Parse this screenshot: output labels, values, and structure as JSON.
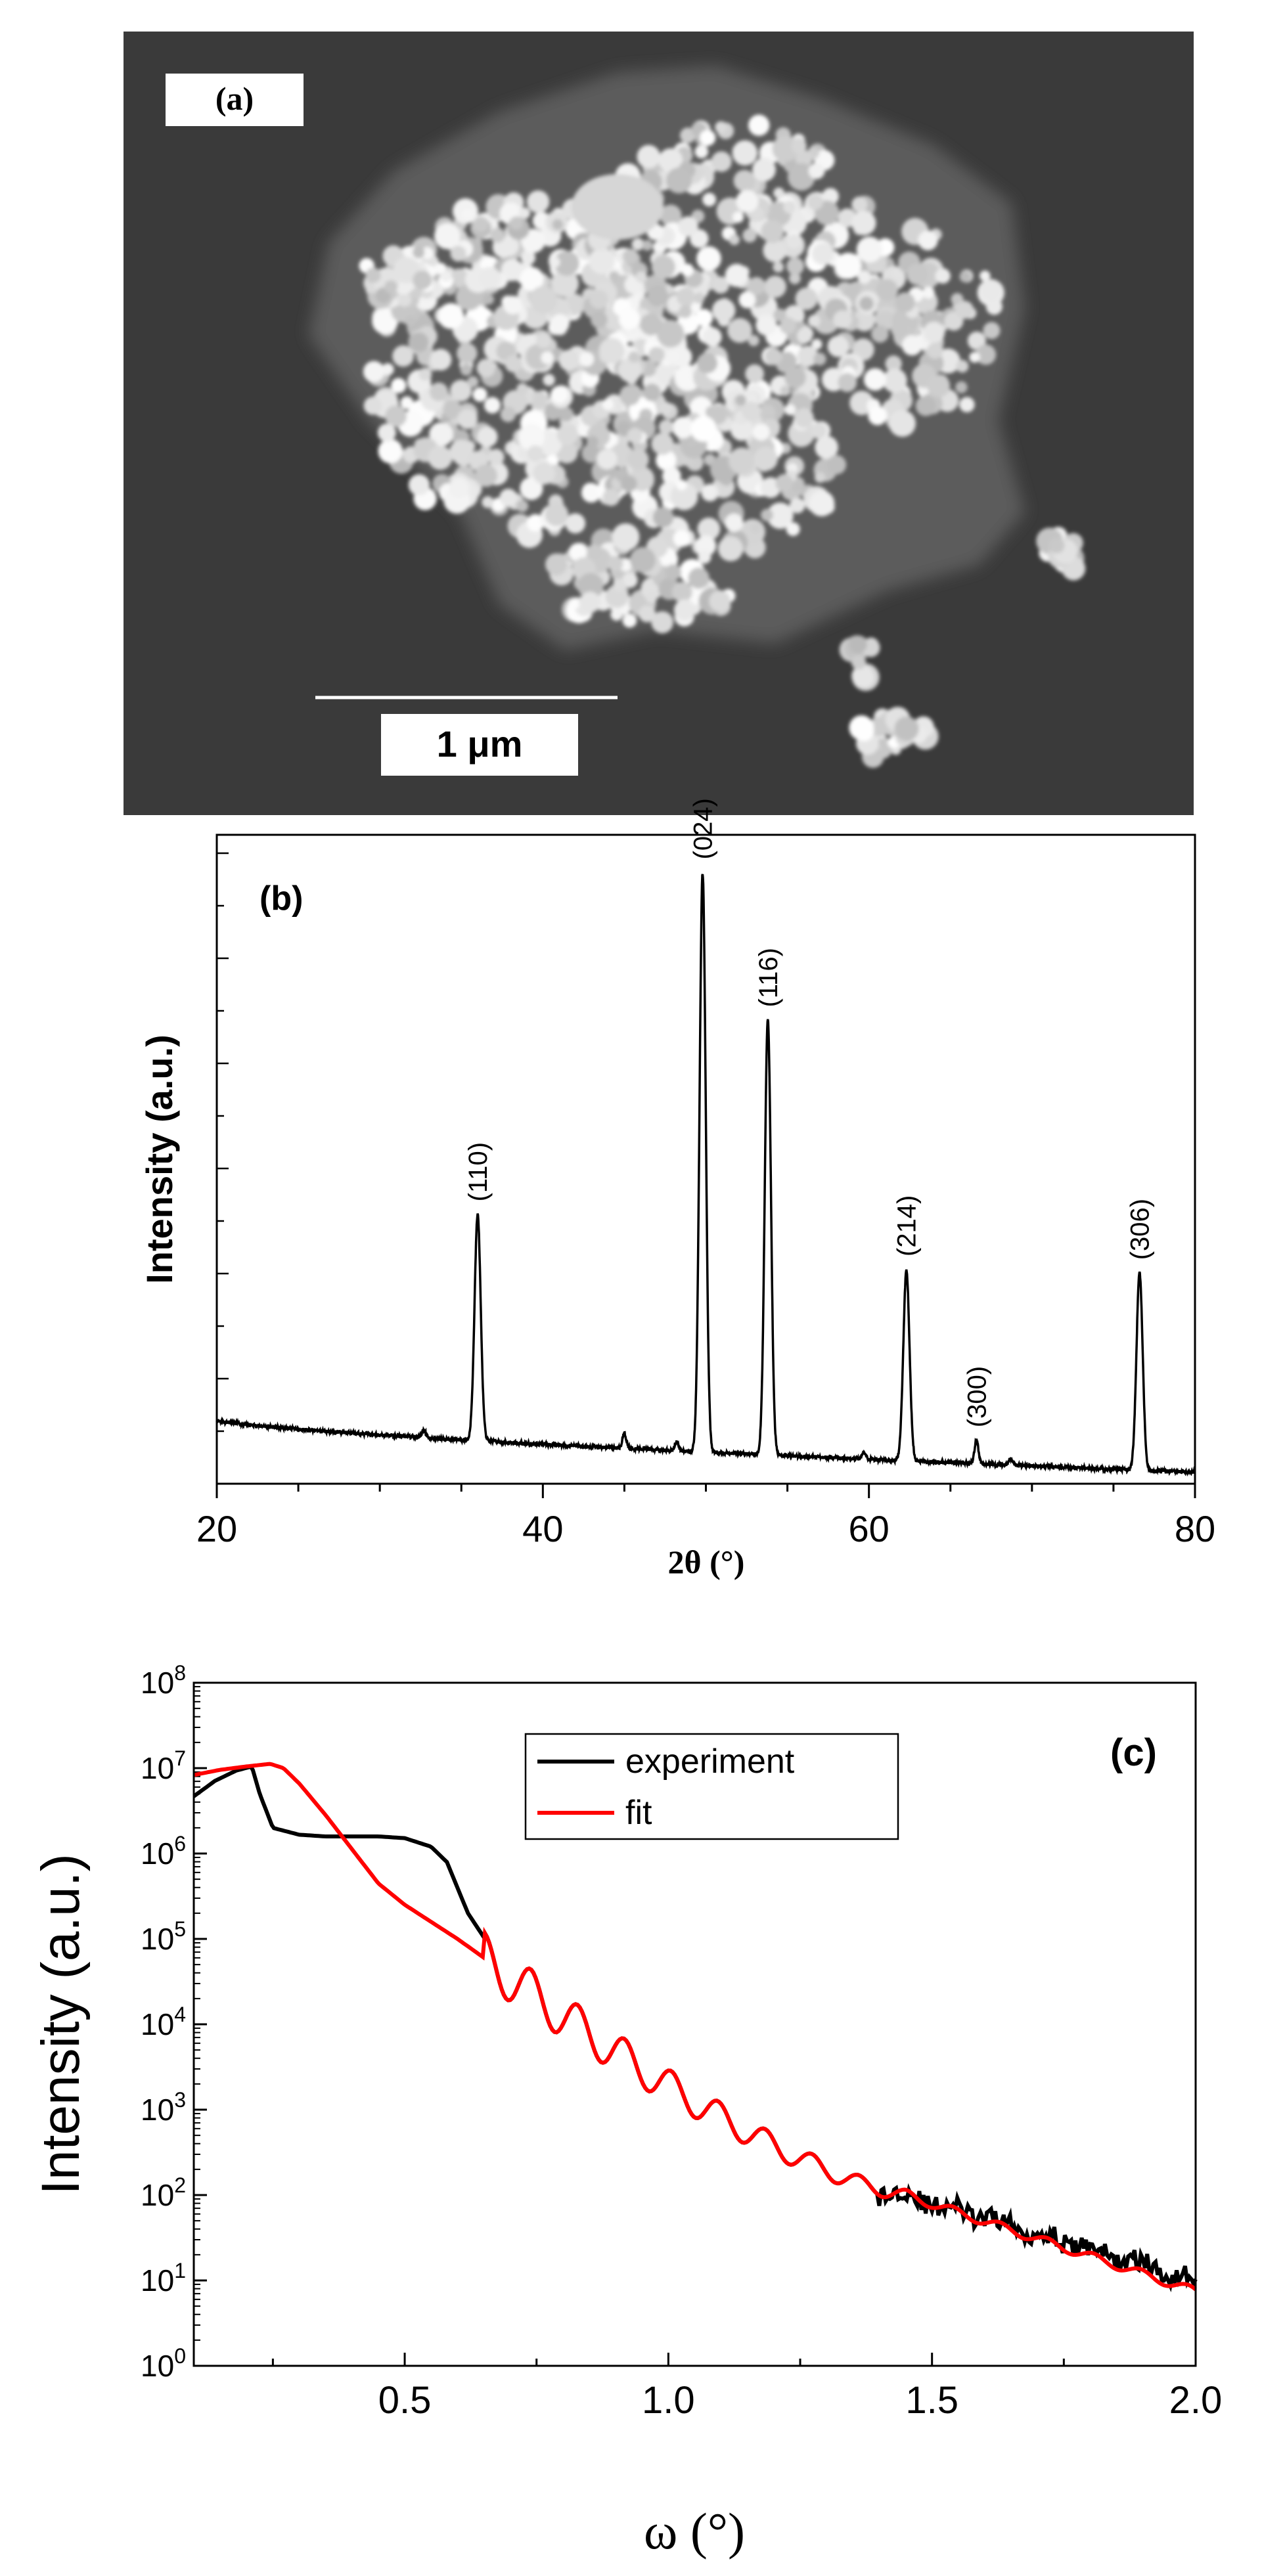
{
  "panel_a": {
    "label": "(a)",
    "scale_bar_text": "1 μm"
  },
  "chart_data": [
    {
      "id": "b",
      "type": "line",
      "panel_label": "(b)",
      "xlabel": "2θ (°)",
      "ylabel": "Intensity (a.u.)",
      "xlim": [
        20,
        80
      ],
      "ylim": [
        0,
        1.12
      ],
      "xticks": [
        20,
        40,
        60,
        80
      ],
      "y_tick_labels_shown": false,
      "baseline": {
        "start": 0.11,
        "end": 0.02
      },
      "peaks": [
        {
          "label": "(110)",
          "x": 36.0,
          "height": 0.39
        },
        {
          "label": "(024)",
          "x": 49.8,
          "height": 1.0
        },
        {
          "label": "(116)",
          "x": 53.8,
          "height": 0.75
        },
        {
          "label": "(214)",
          "x": 62.3,
          "height": 0.33
        },
        {
          "label": "(300)",
          "x": 66.6,
          "height": 0.04
        },
        {
          "label": "(306)",
          "x": 76.6,
          "height": 0.34
        }
      ],
      "minor_peaks": [
        {
          "x": 32.7,
          "height": 0.012
        },
        {
          "x": 45.0,
          "height": 0.025
        },
        {
          "x": 48.2,
          "height": 0.015
        },
        {
          "x": 59.7,
          "height": 0.012
        },
        {
          "x": 68.7,
          "height": 0.012
        }
      ]
    },
    {
      "id": "c",
      "type": "line",
      "panel_label": "(c)",
      "xlabel": "ω (°)",
      "ylabel": "Intensity (a.u.)",
      "xlim": [
        0.1,
        2.0
      ],
      "ylim_exp": [
        0,
        8
      ],
      "yscale": "log",
      "xticks": [
        0.5,
        1.0,
        1.5,
        2.0
      ],
      "xtick_labels": [
        "0.5",
        "1.0",
        "1.5",
        "2.0"
      ],
      "ytick_exponents": [
        0,
        1,
        2,
        3,
        4,
        5,
        6,
        7,
        8
      ],
      "ytick_base": "10",
      "legend": {
        "position": "top-center",
        "entries": [
          "experiment",
          "fit"
        ]
      },
      "series": [
        {
          "name": "experiment",
          "color": "#000000",
          "x": [
            0.1,
            0.14,
            0.18,
            0.21,
            0.225,
            0.25,
            0.3,
            0.35,
            0.4,
            0.45,
            0.5,
            0.55,
            0.58,
            0.6,
            0.62,
            0.65
          ],
          "log10_y": [
            6.67,
            6.85,
            6.97,
            7.02,
            6.7,
            6.3,
            6.22,
            6.2,
            6.2,
            6.2,
            6.18,
            6.08,
            5.9,
            5.6,
            5.3,
            5.02
          ],
          "oscillation": {
            "start": 0.65,
            "end": 2.0,
            "base_start": 4.78,
            "base_mid_x": 1.45,
            "base_mid": 2.0,
            "base_end": 1.0,
            "period": 0.089,
            "amp_start": 0.3,
            "amp_end": 0.05,
            "amp_fade_x": 1.5,
            "noise_start": 1.4,
            "noise_amp": 0.12
          }
        },
        {
          "name": "fit",
          "color": "#ff0000",
          "x": [
            0.1,
            0.15,
            0.2,
            0.245,
            0.27,
            0.3,
            0.35,
            0.4,
            0.45,
            0.5,
            0.55,
            0.6,
            0.65
          ],
          "log10_y": [
            6.92,
            6.98,
            7.02,
            7.05,
            7.0,
            6.82,
            6.45,
            6.05,
            5.65,
            5.4,
            5.2,
            5.0,
            4.78
          ],
          "oscillation": {
            "start": 0.65,
            "end": 2.0,
            "base_start": 4.78,
            "base_mid_x": 1.45,
            "base_mid": 2.0,
            "base_end": 0.87,
            "period": 0.089,
            "amp_start": 0.3,
            "amp_end": 0.05,
            "amp_fade_x": 1.5,
            "noise_start": 9,
            "noise_amp": 0
          }
        }
      ]
    }
  ]
}
